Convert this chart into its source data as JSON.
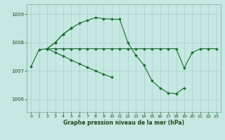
{
  "title": "Graphe pression niveau de la mer (hPa)",
  "bg_color": "#c5e8e2",
  "line_color": "#1a6b30",
  "grid_color": "#a8cfc8",
  "ylim": [
    1005.55,
    1009.35
  ],
  "yticks": [
    1006,
    1007,
    1008,
    1009
  ],
  "xlim": [
    -0.5,
    23.5
  ],
  "xticks": [
    0,
    1,
    2,
    3,
    4,
    5,
    6,
    7,
    8,
    9,
    10,
    11,
    12,
    13,
    14,
    15,
    16,
    17,
    18,
    19,
    20,
    21,
    22,
    23
  ],
  "lines": [
    [
      1007.15,
      1007.75,
      1007.78,
      1008.0,
      1008.3,
      1008.5,
      1008.68,
      1008.78,
      1008.88,
      1008.84,
      1008.82,
      1008.82,
      1008.0,
      1007.55,
      1007.2,
      1006.65,
      1006.4,
      1006.22,
      1006.2,
      1006.4,
      null,
      null,
      null,
      null
    ],
    [
      null,
      null,
      1007.78,
      1008.0,
      1008.3,
      1008.5,
      null,
      null,
      null,
      null,
      null,
      null,
      null,
      null,
      null,
      null,
      null,
      null,
      null,
      null,
      null,
      null,
      null,
      null
    ],
    [
      null,
      null,
      1007.78,
      1007.78,
      1007.78,
      1007.78,
      1007.78,
      1007.78,
      1007.78,
      1007.78,
      1007.78,
      1007.78,
      1007.78,
      1007.78,
      1007.78,
      1007.78,
      1007.78,
      1007.78,
      1007.78,
      1007.1,
      1007.65,
      1007.78,
      1007.78,
      1007.78
    ],
    [
      null,
      null,
      1007.78,
      1007.65,
      1007.52,
      1007.38,
      1007.25,
      1007.12,
      1007.0,
      1006.88,
      1006.78,
      null,
      null,
      null,
      null,
      null,
      null,
      null,
      null,
      null,
      null,
      null,
      null,
      null
    ]
  ]
}
